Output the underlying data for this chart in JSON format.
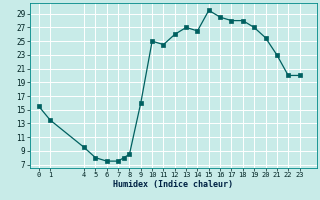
{
  "xlabel": "Humidex (Indice chaleur)",
  "bg_color": "#c8ebe8",
  "grid_color": "#ffffff",
  "line_color": "#006060",
  "marker_color": "#006060",
  "xlim": [
    -0.8,
    24.5
  ],
  "ylim": [
    6.5,
    30.5
  ],
  "xticks": [
    0,
    1,
    4,
    5,
    6,
    7,
    8,
    9,
    10,
    11,
    12,
    13,
    14,
    15,
    16,
    17,
    18,
    19,
    20,
    21,
    22,
    23
  ],
  "yticks": [
    7,
    9,
    11,
    13,
    15,
    17,
    19,
    21,
    23,
    25,
    27,
    29
  ],
  "data_x": [
    0,
    1,
    4,
    5,
    6,
    7,
    7.5,
    8,
    9,
    10,
    11,
    12,
    13,
    14,
    15,
    16,
    17,
    18,
    19,
    20,
    21,
    22,
    23
  ],
  "data_y": [
    15.5,
    13.5,
    9.5,
    8.0,
    7.5,
    7.5,
    8.0,
    8.5,
    16.0,
    25.0,
    24.5,
    26.0,
    27.0,
    26.5,
    29.5,
    28.5,
    28.0,
    28.0,
    27.0,
    25.5,
    23.0,
    20.0,
    20.0
  ],
  "xlabel_fontsize": 6,
  "tick_fontsize": 5,
  "linewidth": 0.9,
  "markersize": 2.2
}
